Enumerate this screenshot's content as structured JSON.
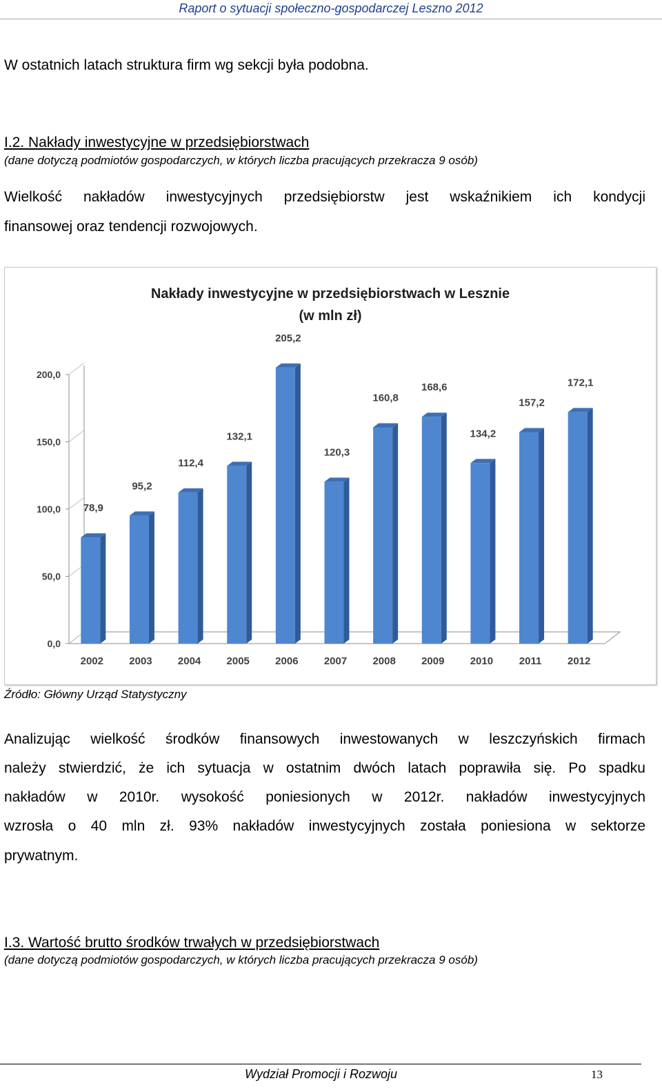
{
  "header": {
    "title": "Raport o sytuacji społeczno-gospodarczej Leszno 2012"
  },
  "intro": "W ostatnich latach struktura firm wg sekcji była podobna.",
  "section2": {
    "title": "I.2. Nakłady inwestycyjne w przedsiębiorstwach",
    "note": "(dane dotyczą podmiotów gospodarczych, w których liczba pracujących przekracza 9 osób)",
    "para_lines": [
      "Wielkość nakładów inwestycyjnych przedsiębiorstw jest wskaźnikiem ich kondycji",
      "finansowej oraz tendencji rozwojowych."
    ]
  },
  "chart_data": {
    "type": "bar",
    "title": "Nakłady inwestycyjne w przedsiębiorstwach w Lesznie",
    "subtitle": "(w mln zł)",
    "categories": [
      "2002",
      "2003",
      "2004",
      "2005",
      "2006",
      "2007",
      "2008",
      "2009",
      "2010",
      "2011",
      "2012"
    ],
    "values": [
      78.9,
      95.2,
      112.4,
      132.1,
      205.2,
      120.3,
      160.8,
      168.6,
      134.2,
      157.2,
      172.1
    ],
    "value_labels": [
      "78,9",
      "95,2",
      "112,4",
      "132,1",
      "205,2",
      "120,3",
      "160,8",
      "168,6",
      "134,2",
      "157,2",
      "172,1"
    ],
    "y_ticks": [
      0,
      50,
      100,
      150,
      200
    ],
    "y_tick_labels": [
      "0,0",
      "50,0",
      "100,0",
      "150,0",
      "200,0"
    ],
    "ylim": [
      0,
      200
    ],
    "bar_color": "#4f86d0",
    "bar_side_color": "#2f5c99",
    "legend": "none",
    "grid": false
  },
  "source": "Źródło: Główny Urząd Statystyczny",
  "analysis_lines": [
    "Analizując wielkość środków finansowych inwestowanych w leszczyńskich firmach",
    "należy stwierdzić, że ich sytuacja w ostatnim dwóch latach poprawiła się. Po spadku",
    "nakładów  w 2010r. wysokość poniesionych w 2012r. nakładów inwestycyjnych",
    "wzrosła o 40 mln zł. 93% nakładów inwestycyjnych została poniesiona w sektorze",
    "prywatnym."
  ],
  "section3": {
    "title": "I.3.  Wartość brutto środków trwałych w przedsiębiorstwach",
    "note": "(dane dotyczą podmiotów gospodarczych, w których liczba pracujących przekracza 9 osób)"
  },
  "footer": {
    "text": "Wydział Promocji i Rozwoju",
    "page_number": "13"
  }
}
